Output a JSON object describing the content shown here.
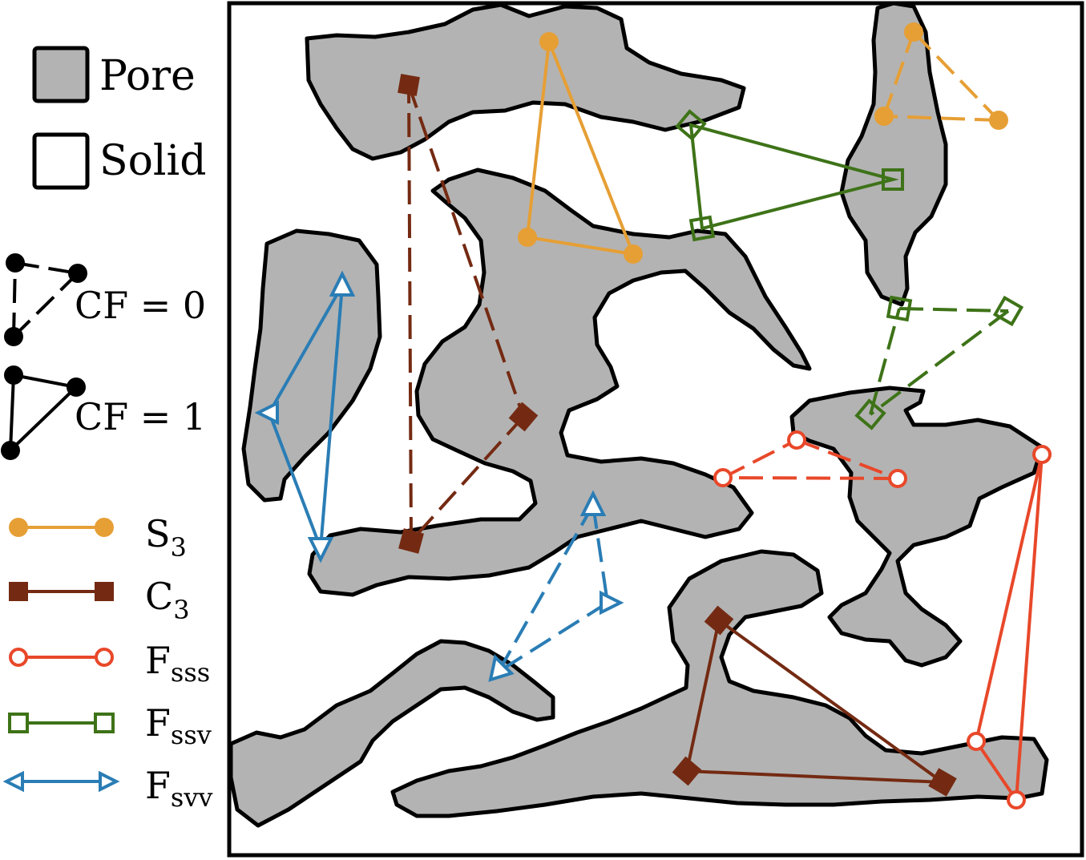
{
  "legend": {
    "pore_label": "Pore",
    "solid_label": "Solid",
    "cf0_label": "CF = 0",
    "cf1_label": "CF = 1",
    "series": [
      {
        "main": "S",
        "sub": "3",
        "color": "#E69F35",
        "marker": "filled-circle"
      },
      {
        "main": "C",
        "sub": "3",
        "color": "#742A12",
        "marker": "filled-square"
      },
      {
        "main": "F",
        "sub": "sss",
        "color": "#E8482A",
        "marker": "open-circle"
      },
      {
        "main": "F",
        "sub": "ssv",
        "color": "#3E7318",
        "marker": "open-square"
      },
      {
        "main": "F",
        "sub": "svv",
        "color": "#2A7DB5",
        "marker": "open-triangle"
      }
    ]
  },
  "colors": {
    "pore": "#B3B3B3",
    "solid": "#FFFFFF",
    "outline": "#000000"
  }
}
